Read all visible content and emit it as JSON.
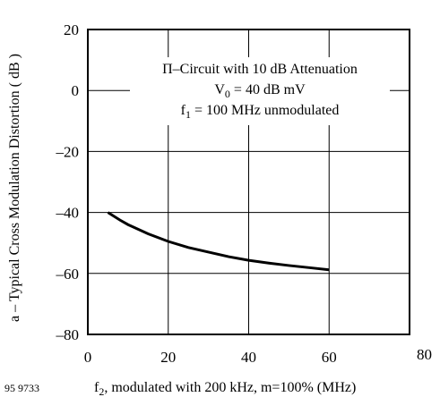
{
  "figure_id": "95 9733",
  "chart_data": {
    "type": "line",
    "title": "",
    "xlabel_prefix": "f",
    "xlabel_sub": "2",
    "xlabel_rest": ", modulated with 200 kHz, m=100% (MHz)",
    "ylabel": "a – Typical Cross Modulation Distortion ( dB )",
    "xlim": [
      0,
      80
    ],
    "ylim": [
      -80,
      20
    ],
    "x_ticks": [
      0,
      20,
      40,
      60,
      80
    ],
    "x_tick_labels": [
      "0",
      "20",
      "40",
      "60",
      "80"
    ],
    "y_ticks": [
      20,
      0,
      -20,
      -40,
      -60,
      -80
    ],
    "y_tick_labels": [
      "20",
      "0",
      "–20",
      "–40",
      "–60",
      "–80"
    ],
    "grid": true,
    "annotations": {
      "line1": "Π–Circuit with 10 dB Attenuation",
      "line2_main": "V",
      "line2_sub": "0",
      "line2_rest": " = 40 dB mV",
      "line3_main": "f",
      "line3_sub": "1",
      "line3_rest": " = 100 MHz unmodulated"
    },
    "series": [
      {
        "x": [
          5,
          8,
          10,
          15,
          20,
          25,
          30,
          35,
          40,
          45,
          50,
          55,
          60
        ],
        "y": [
          -40,
          -42.5,
          -44,
          -47,
          -49.5,
          -51.5,
          -53,
          -54.5,
          -55.7,
          -56.6,
          -57.4,
          -58.1,
          -58.8
        ]
      }
    ]
  }
}
